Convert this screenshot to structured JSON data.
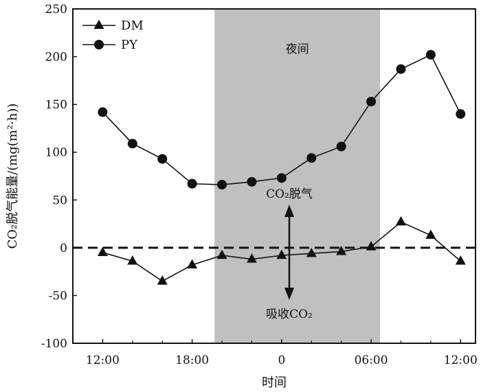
{
  "chart_data": {
    "type": "line",
    "title": "",
    "xlabel": "时间",
    "ylabel": "CO₂脱气能量/(mg(m²·h))",
    "ylim": [
      -100,
      250
    ],
    "yticks": [
      -100,
      -50,
      0,
      50,
      100,
      150,
      200,
      250
    ],
    "xlim": [
      10,
      37
    ],
    "xticks": [
      {
        "hour": 12,
        "label": "12:00"
      },
      {
        "hour": 18,
        "label": "18:00"
      },
      {
        "hour": 24,
        "label": "0"
      },
      {
        "hour": 30,
        "label": "06:00"
      },
      {
        "hour": 36,
        "label": "12:00"
      }
    ],
    "x": [
      12,
      14,
      16,
      18,
      20,
      22,
      24,
      26,
      28,
      30,
      32,
      34,
      36
    ],
    "series": [
      {
        "name": "DM",
        "marker": "triangle",
        "values": [
          -5,
          -14,
          -35,
          -18,
          -8,
          -12,
          -8,
          -6,
          -4,
          1,
          27,
          13,
          -14
        ]
      },
      {
        "name": "PY",
        "marker": "circle",
        "values": [
          142,
          109,
          93,
          67,
          66,
          69,
          73,
          94,
          106,
          153,
          187,
          202,
          140
        ]
      }
    ],
    "night_band": {
      "from": 19.5,
      "to": 30.6,
      "label": "夜间",
      "color": "#c0c0c0"
    },
    "reference_line": {
      "y": 0,
      "style": "dashed"
    },
    "arrow_annotations": {
      "up_label": "CO₂脱气",
      "down_label": "吸收CO₂"
    },
    "legend_placement": "top-left",
    "grid": false
  }
}
